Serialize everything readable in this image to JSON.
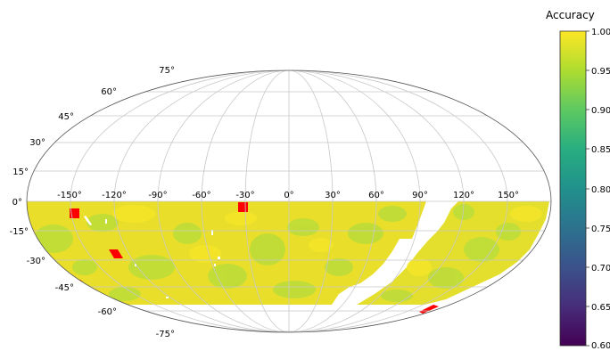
{
  "map": {
    "projection": "mollweide",
    "colorbar": {
      "title": "Accuracy",
      "ticks": [
        "1.00",
        "0.95",
        "0.90",
        "0.85",
        "0.80",
        "0.75",
        "0.70",
        "0.65",
        "0.60"
      ],
      "colormap": "viridis",
      "range": [
        0.6,
        1.0
      ]
    },
    "lat_labels": [
      "75°",
      "60°",
      "45°",
      "30°",
      "15°",
      "0°",
      "-15°",
      "-30°",
      "-45°",
      "-60°",
      "-75°"
    ],
    "lon_labels": [
      "-150°",
      "-120°",
      "-90°",
      "-60°",
      "-30°",
      "0°",
      "30°",
      "60°",
      "90°",
      "120°",
      "150°"
    ],
    "colors": {
      "dominant": "#ecdf24",
      "secondary": "#b2dc3a",
      "low_accuracy": "#ff0000",
      "grid": "#c8c8c8",
      "outline": "#555555"
    }
  }
}
